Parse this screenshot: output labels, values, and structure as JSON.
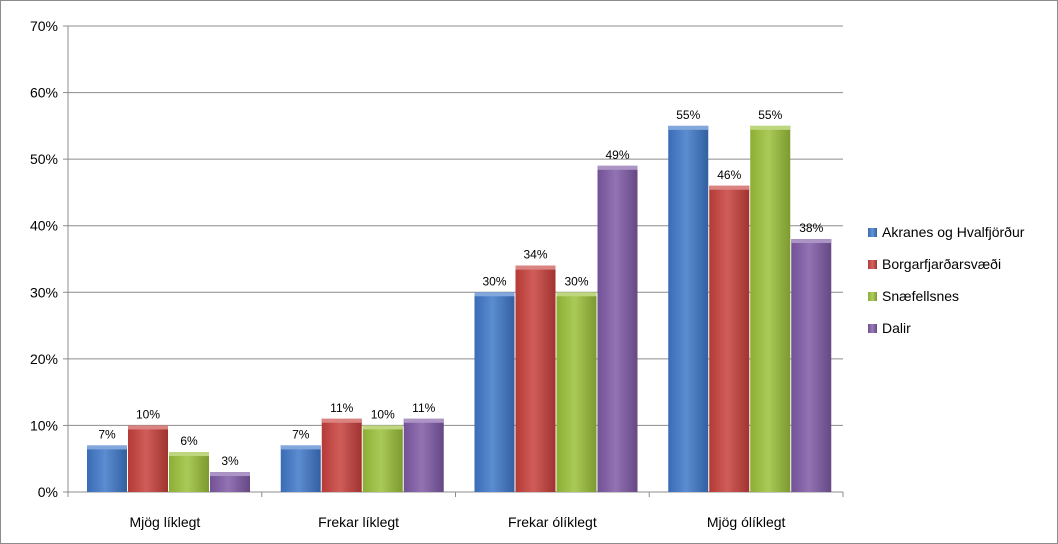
{
  "chart_data": {
    "type": "bar",
    "title": "",
    "xlabel": "",
    "ylabel": "",
    "ylim": [
      0,
      70
    ],
    "y_ticks": [
      "0%",
      "10%",
      "20%",
      "30%",
      "40%",
      "50%",
      "60%",
      "70%"
    ],
    "grid": true,
    "legend_position": "right",
    "categories": [
      "Mjög líklegt",
      "Frekar líklegt",
      "Frekar ólíklegt",
      "Mjög ólíklegt"
    ],
    "series": [
      {
        "name": "Akranes og Hvalfjörður",
        "color": "#3f78c9",
        "values": [
          7,
          7,
          30,
          55
        ],
        "labels": [
          "7%",
          "7%",
          "30%",
          "55%"
        ]
      },
      {
        "name": "Borgarfjarðarsvæði",
        "color": "#c8403c",
        "values": [
          10,
          11,
          34,
          46
        ],
        "labels": [
          "10%",
          "11%",
          "34%",
          "46%"
        ]
      },
      {
        "name": "Snæfellsnes",
        "color": "#9bc13a",
        "values": [
          6,
          10,
          30,
          55
        ],
        "labels": [
          "6%",
          "10%",
          "30%",
          "55%"
        ]
      },
      {
        "name": "Dalir",
        "color": "#7f5aa6",
        "values": [
          3,
          11,
          49,
          38
        ],
        "labels": [
          "3%",
          "11%",
          "49%",
          "38%"
        ]
      }
    ]
  }
}
